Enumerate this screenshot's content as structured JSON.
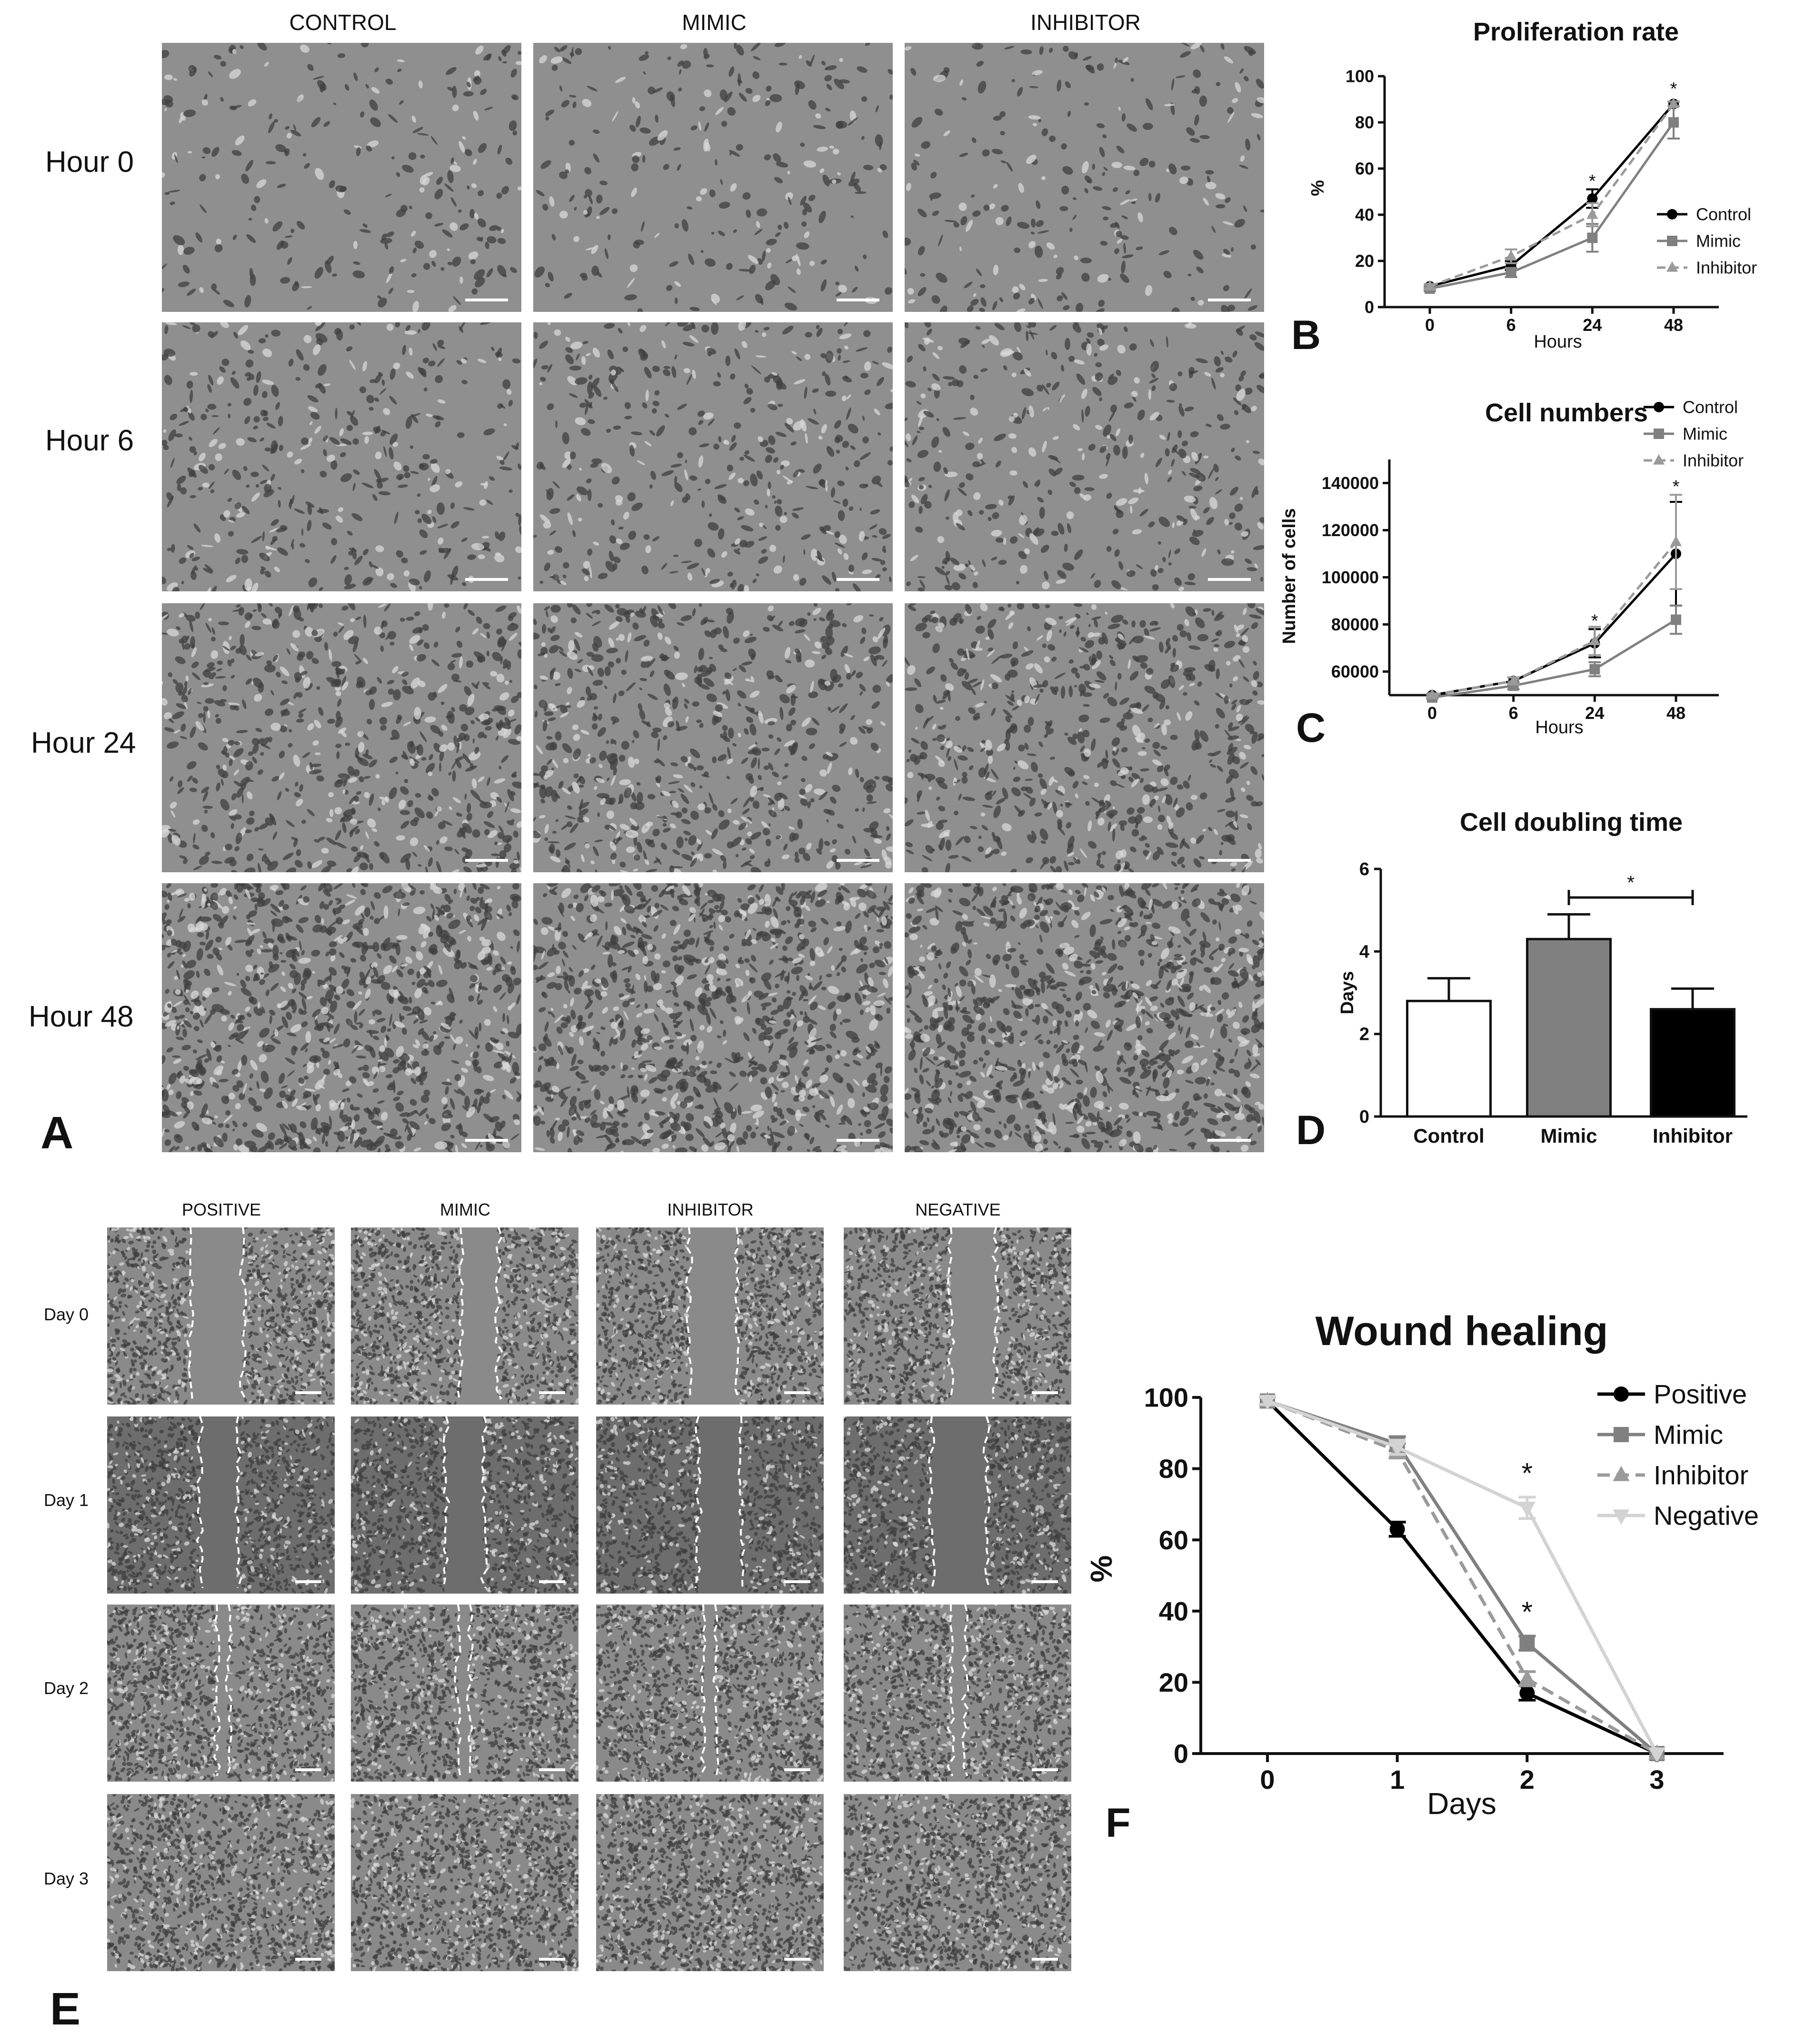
{
  "panel_letters": {
    "a": "A",
    "b": "B",
    "c": "C",
    "d": "D",
    "e": "E",
    "f": "F"
  },
  "panelA": {
    "columns": [
      "CONTROL",
      "MIMIC",
      "INHIBITOR"
    ],
    "rows": [
      "Hour 0",
      "Hour 6",
      "Hour 24",
      "Hour 48"
    ]
  },
  "panelE": {
    "columns": [
      "POSITIVE",
      "MIMIC",
      "INHIBITOR",
      "NEGATIVE"
    ],
    "rows": [
      "Day 0",
      "Day 1",
      "Day 2",
      "Day 3"
    ]
  },
  "colors": {
    "control": "#000000",
    "mimic": "#808080",
    "inhibitor": "#9a9a9a",
    "negative": "#d3d3d3",
    "image_bg": "#8f8f8f",
    "image_cell": "#3d3d3d",
    "wound_line": "#ffffff"
  },
  "chart_data": [
    {
      "id": "B",
      "type": "line",
      "title": "Proliferation rate",
      "xlabel": "Hours",
      "ylabel": "%",
      "x": [
        0,
        6,
        24,
        48
      ],
      "xticks": [
        "0",
        "6",
        "24",
        "48"
      ],
      "ylim": [
        0,
        100
      ],
      "yticks": [
        "0",
        "20",
        "40",
        "60",
        "80",
        "100"
      ],
      "legend": "right",
      "series": [
        {
          "name": "Control",
          "values": [
            9,
            18,
            47,
            88
          ],
          "errors": [
            1,
            2,
            4,
            1
          ],
          "style": "solid",
          "marker": "circle",
          "color": "#000000"
        },
        {
          "name": "Mimic",
          "values": [
            8,
            15,
            30,
            80
          ],
          "errors": [
            1,
            2,
            6,
            7
          ],
          "style": "solid",
          "marker": "square",
          "color": "#808080"
        },
        {
          "name": "Inhibitor",
          "values": [
            9,
            22,
            40,
            88
          ],
          "errors": [
            1,
            3,
            5,
            1
          ],
          "style": "dashed",
          "marker": "triangle",
          "color": "#9a9a9a"
        }
      ],
      "annotations": [
        {
          "x": 24,
          "y": 52,
          "text": "*"
        },
        {
          "x": 48,
          "y": 92,
          "text": "*"
        }
      ]
    },
    {
      "id": "C",
      "type": "line",
      "title": "Cell numbers",
      "xlabel": "Hours",
      "ylabel": "Number of cells",
      "x": [
        0,
        6,
        24,
        48
      ],
      "xticks": [
        "0",
        "6",
        "24",
        "48"
      ],
      "ylim": [
        50000,
        150000
      ],
      "yticks": [
        "60000",
        "80000",
        "100000",
        "120000",
        "140000"
      ],
      "legend": "top-right",
      "series": [
        {
          "name": "Control",
          "values": [
            50000,
            56000,
            72000,
            110000
          ],
          "errors": [
            500,
            1500,
            6000,
            22000
          ],
          "style": "solid",
          "marker": "circle",
          "color": "#000000"
        },
        {
          "name": "Mimic",
          "values": [
            49000,
            54000,
            61000,
            82000
          ],
          "errors": [
            500,
            1500,
            3000,
            6000
          ],
          "style": "solid",
          "marker": "square",
          "color": "#808080"
        },
        {
          "name": "Inhibitor",
          "values": [
            50000,
            56000,
            73000,
            115000
          ],
          "errors": [
            500,
            1500,
            6000,
            20000
          ],
          "style": "dashed",
          "marker": "triangle",
          "color": "#9a9a9a"
        }
      ],
      "annotations": [
        {
          "x": 24,
          "y": 79000,
          "text": "*"
        },
        {
          "x": 48,
          "y": 136000,
          "text": "*"
        }
      ]
    },
    {
      "id": "D",
      "type": "bar",
      "title": "Cell doubling time",
      "xlabel": "",
      "ylabel": "Days",
      "categories": [
        "Control",
        "Mimic",
        "Inhibitor"
      ],
      "values": [
        2.8,
        4.3,
        2.6
      ],
      "errors": [
        0.55,
        0.6,
        0.5
      ],
      "bar_colors": [
        "#ffffff",
        "#808080",
        "#000000"
      ],
      "ylim": [
        0,
        6
      ],
      "yticks": [
        "0",
        "2",
        "4",
        "6"
      ],
      "significance": {
        "from": 1,
        "to": 2,
        "text": "*"
      }
    },
    {
      "id": "F",
      "type": "line",
      "title": "Wound healing",
      "xlabel": "Days",
      "ylabel": "%",
      "x": [
        0,
        1,
        2,
        3
      ],
      "xticks": [
        "0",
        "1",
        "2",
        "3"
      ],
      "ylim": [
        0,
        100
      ],
      "yticks": [
        "0",
        "20",
        "40",
        "60",
        "80",
        "100"
      ],
      "legend": "top-right",
      "series": [
        {
          "name": "Positive",
          "values": [
            99,
            63,
            17,
            0
          ],
          "errors": [
            1,
            2,
            2,
            0
          ],
          "style": "solid",
          "marker": "circle",
          "color": "#000000"
        },
        {
          "name": "Mimic",
          "values": [
            99,
            87,
            31,
            0
          ],
          "errors": [
            1,
            2,
            2,
            0
          ],
          "style": "solid",
          "marker": "square",
          "color": "#808080"
        },
        {
          "name": "Inhibitor",
          "values": [
            99,
            85,
            21,
            0
          ],
          "errors": [
            1,
            2,
            2,
            0
          ],
          "style": "dashed",
          "marker": "triangle",
          "color": "#9a9a9a"
        },
        {
          "name": "Negative",
          "values": [
            99,
            86,
            69,
            0
          ],
          "errors": [
            1,
            2,
            3,
            0
          ],
          "style": "solid",
          "marker": "inv-triangle",
          "color": "#d3d3d3"
        }
      ],
      "annotations": [
        {
          "x": 2,
          "y": 76,
          "text": "*"
        },
        {
          "x": 2,
          "y": 37,
          "text": "*"
        }
      ]
    }
  ]
}
